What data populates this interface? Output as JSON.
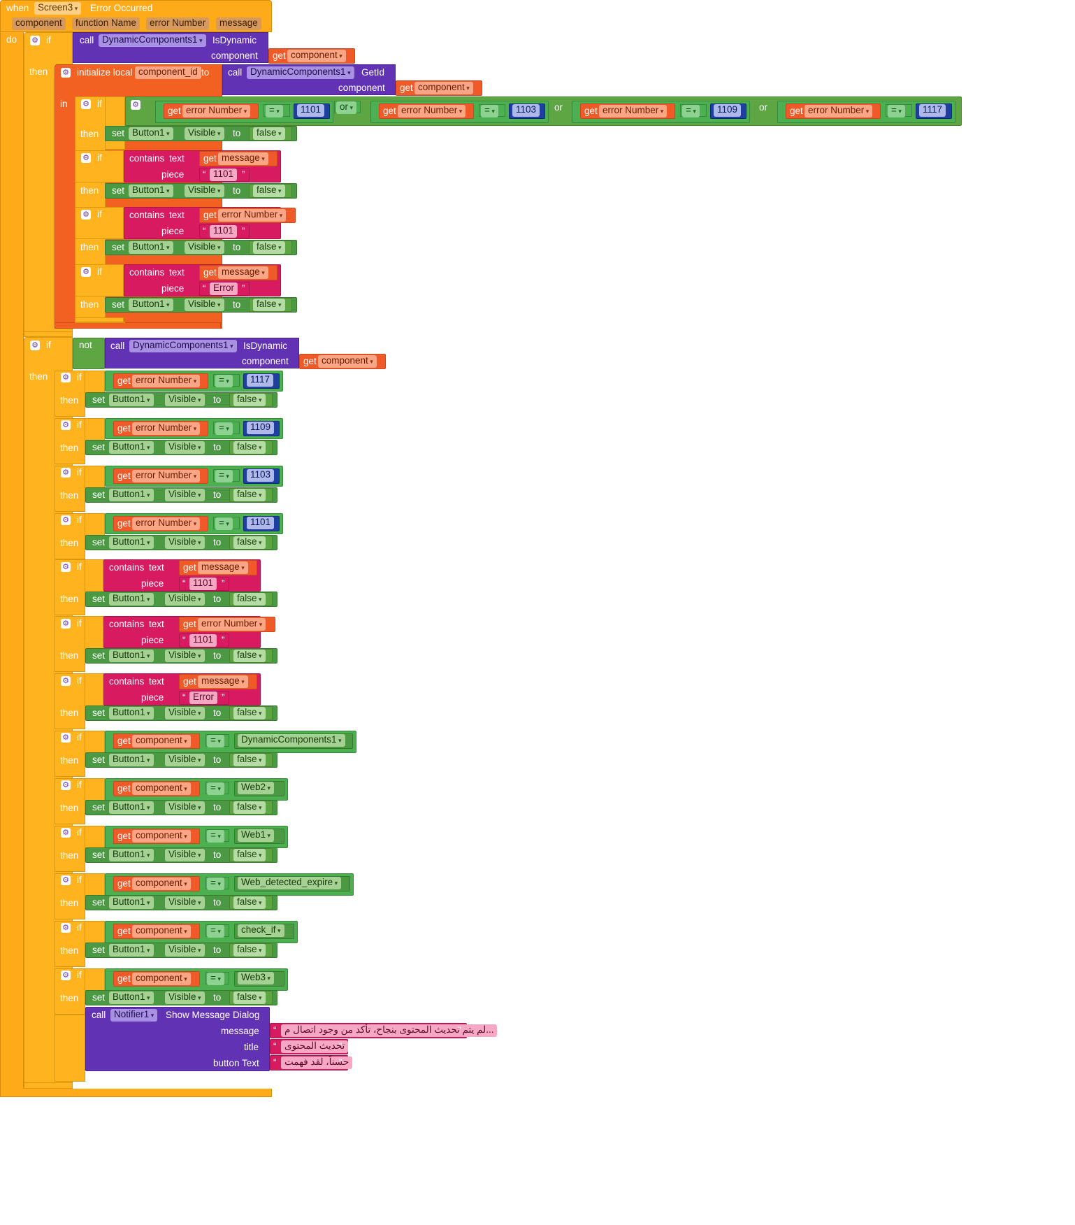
{
  "event": {
    "when": "when",
    "component": "Screen3",
    "event": "Error Occurred",
    "do": "do",
    "params": [
      "component",
      "function Name",
      "error Number",
      "message"
    ]
  },
  "kw": {
    "if": "if",
    "then": "then",
    "in": "in",
    "get": "get",
    "set": "set",
    "to": "to",
    "call": "call",
    "or": "or",
    "not": "not",
    "eq": "=",
    "contains": "contains",
    "text": "text",
    "piece": "piece",
    "init": "initialize local",
    "component": "component",
    "visible": "Visible",
    "false": "false",
    "button1": "Button1",
    "dyn": "DynamicComponents1",
    "isdyn": "IsDynamic",
    "getid": "GetId",
    "var": "component_id",
    "error_number": "error Number",
    "message": "message",
    "q1": "“",
    "q2": "”"
  },
  "values": {
    "n1101": "1101",
    "n1103": "1103",
    "n1109": "1109",
    "n1117": "1117",
    "error_text": "Error"
  },
  "components": [
    "DynamicComponents1",
    "Web2",
    "Web1",
    "Web_detected_expire",
    "check_if",
    "Web3"
  ],
  "notifier": {
    "component": "Notifier1",
    "method": "Show Message Dialog",
    "message_label": "message",
    "title_label": "title",
    "button_label": "button Text",
    "message": "...لم يتم تحديث المحتوى بنجاح، تأكد من وجود اتصال م",
    "title": "تحديث المحتوى",
    "button": "حسناً، لقد فهمت"
  }
}
